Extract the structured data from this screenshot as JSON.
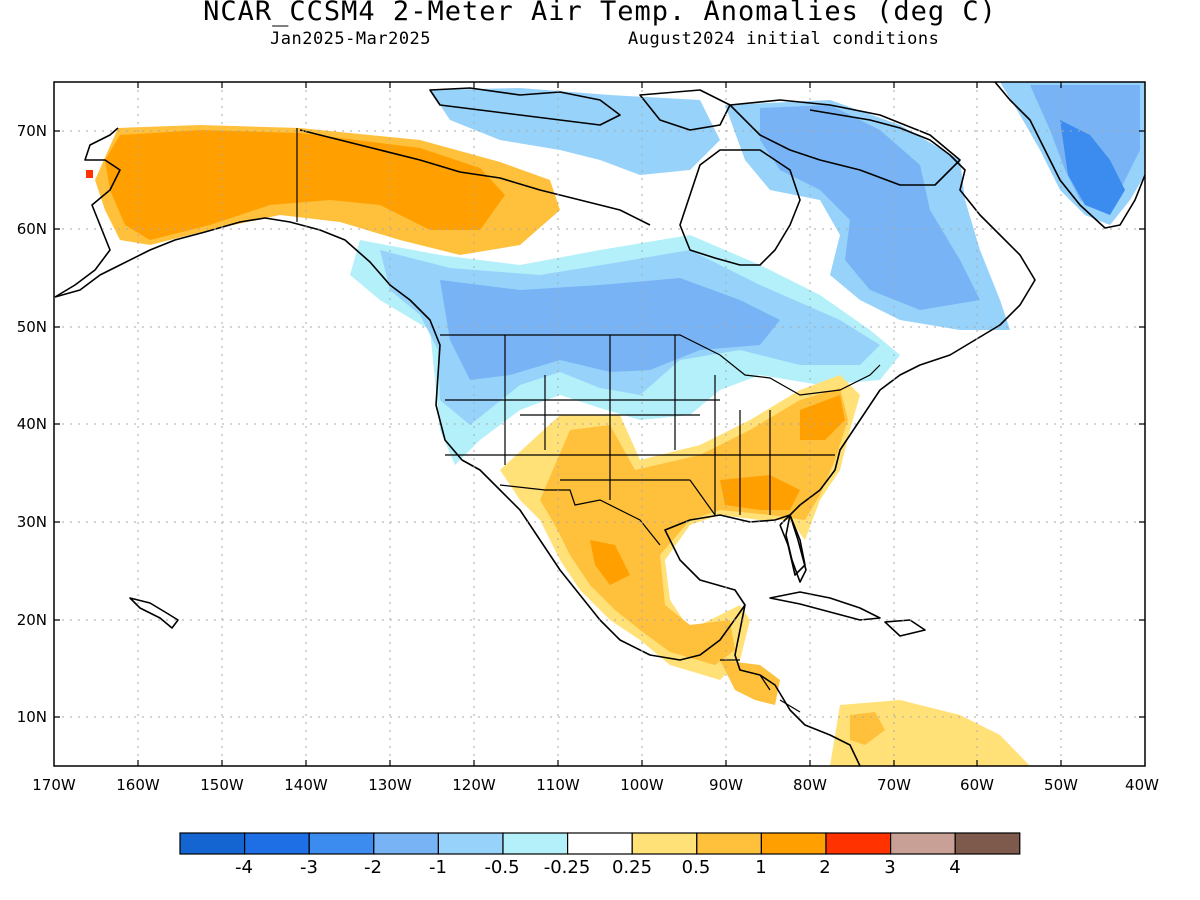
{
  "header": {
    "title": "NCAR_CCSM4 2-Meter Air Temp. Anomalies (deg C)",
    "period": "Jan2025-Mar2025",
    "init": "August2024 initial conditions"
  },
  "axes": {
    "lat_labels": [
      "70N",
      "60N",
      "50N",
      "40N",
      "30N",
      "20N",
      "10N"
    ],
    "lon_labels": [
      "170W",
      "160W",
      "150W",
      "140W",
      "130W",
      "120W",
      "110W",
      "100W",
      "90W",
      "80W",
      "70W",
      "60W",
      "50W",
      "40W"
    ]
  },
  "colorbar": {
    "colors": [
      "#1464d2",
      "#1e6ee6",
      "#3c8cf0",
      "#78b4f5",
      "#96d2fa",
      "#b4f0fa",
      "#ffffff",
      "#ffe178",
      "#ffc03c",
      "#ffa000",
      "#ff3200",
      "#c8a096",
      "#7d5a4b"
    ],
    "labels": [
      "-4",
      "-3",
      "-2",
      "-1",
      "-0.5",
      "-0.25",
      "0.25",
      "0.5",
      "1",
      "2",
      "3",
      "4"
    ]
  },
  "colors": {
    "slight_cool": "#b4f0fa",
    "cool": "#96d2fa",
    "cooler": "#78b4f5",
    "cold": "#3c8cf0",
    "slight_warm": "#ffe178",
    "warm": "#ffc03c",
    "warmer": "#ffa000",
    "hot": "#ff3200"
  }
}
